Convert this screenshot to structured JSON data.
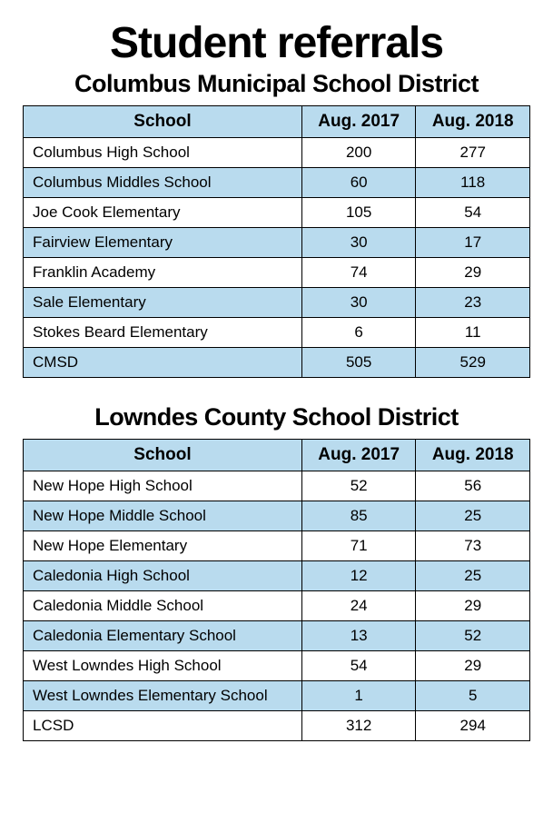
{
  "page": {
    "title": "Student referrals",
    "title_fontsize": 48,
    "colors": {
      "header_bg": "#b9dbee",
      "row_alt_bg": "#b9dbee",
      "row_bg": "#ffffff",
      "border": "#000000",
      "text": "#000000",
      "background": "#ffffff"
    }
  },
  "sections": [
    {
      "title": "Columbus Municipal School District",
      "title_fontsize": 27,
      "columns": [
        "School",
        "Aug. 2017",
        "Aug. 2018"
      ],
      "header_fontsize": 19,
      "cell_fontsize": 17,
      "rows": [
        {
          "school": "Columbus High School",
          "y2017": "200",
          "y2018": "277"
        },
        {
          "school": "Columbus Middles School",
          "y2017": "60",
          "y2018": "118"
        },
        {
          "school": "Joe Cook Elementary",
          "y2017": "105",
          "y2018": "54"
        },
        {
          "school": "Fairview Elementary",
          "y2017": "30",
          "y2018": "17"
        },
        {
          "school": "Franklin Academy",
          "y2017": "74",
          "y2018": "29"
        },
        {
          "school": "Sale Elementary",
          "y2017": "30",
          "y2018": "23"
        },
        {
          "school": "Stokes Beard Elementary",
          "y2017": "6",
          "y2018": "11"
        },
        {
          "school": "CMSD",
          "y2017": "505",
          "y2018": "529"
        }
      ]
    },
    {
      "title": "Lowndes County School District",
      "title_fontsize": 27,
      "columns": [
        "School",
        "Aug. 2017",
        "Aug. 2018"
      ],
      "header_fontsize": 19,
      "cell_fontsize": 17,
      "rows": [
        {
          "school": "New Hope High School",
          "y2017": "52",
          "y2018": "56"
        },
        {
          "school": "New Hope Middle School",
          "y2017": "85",
          "y2018": "25"
        },
        {
          "school": "New Hope Elementary",
          "y2017": "71",
          "y2018": "73"
        },
        {
          "school": "Caledonia High School",
          "y2017": "12",
          "y2018": "25"
        },
        {
          "school": "Caledonia Middle School",
          "y2017": "24",
          "y2018": "29"
        },
        {
          "school": "Caledonia Elementary School",
          "y2017": "13",
          "y2018": "52"
        },
        {
          "school": "West Lowndes High School",
          "y2017": "54",
          "y2018": "29"
        },
        {
          "school": "West Lowndes Elementary School",
          "y2017": "1",
          "y2018": "5"
        },
        {
          "school": "LCSD",
          "y2017": "312",
          "y2018": "294"
        }
      ]
    }
  ]
}
